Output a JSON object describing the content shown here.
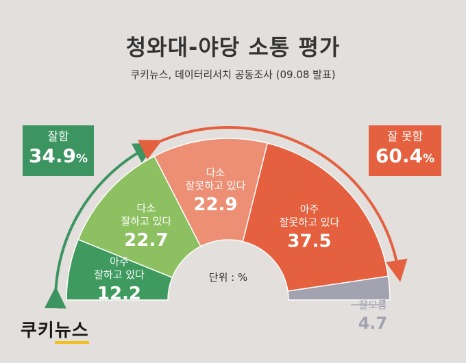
{
  "header": {
    "title": "청와대-야당 소통 평가",
    "subtitle": "쿠키뉴스, 데이터리서치 공동조사 (09.08 발표)"
  },
  "summary": {
    "good": {
      "label": "잘함",
      "value": "34.9",
      "unit": "%",
      "color": "#3c9460"
    },
    "bad": {
      "label": "잘 못함",
      "value": "60.4",
      "unit": "%",
      "color": "#e4603f"
    }
  },
  "center_label": "단위 : %",
  "logo": {
    "part1": "쿠키",
    "part2": "뉴스"
  },
  "chart_data": {
    "type": "pie",
    "title": "청와대-야당 소통 평가",
    "unit": "%",
    "slices": [
      {
        "label_lines": [
          "아주",
          "잘하고 있다"
        ],
        "value": 12.2,
        "color": "#3e9a5e"
      },
      {
        "label_lines": [
          "다소",
          "잘하고 있다"
        ],
        "value": 22.7,
        "color": "#8cc061"
      },
      {
        "label_lines": [
          "다소",
          "잘못하고 있다"
        ],
        "value": 22.9,
        "color": "#ec8f74"
      },
      {
        "label_lines": [
          "아주",
          "잘못하고 있다"
        ],
        "value": 37.5,
        "color": "#e4603f"
      },
      {
        "label_lines": [
          "잘모름"
        ],
        "value": 4.7,
        "color": "#a3a2b0"
      }
    ]
  }
}
